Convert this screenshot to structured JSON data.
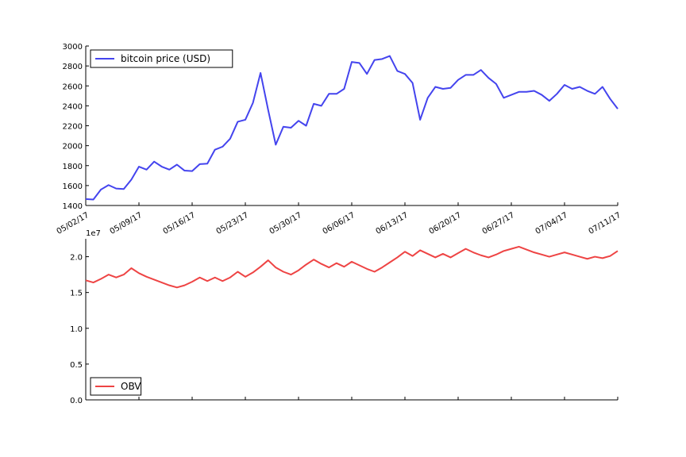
{
  "chart_data": [
    {
      "type": "line",
      "x_tick_labels": [
        "05/02/17",
        "05/09/17",
        "05/16/17",
        "05/23/17",
        "05/30/17",
        "06/06/17",
        "06/13/17",
        "06/20/17",
        "06/27/17",
        "07/04/17",
        "07/11/17"
      ],
      "x": [
        "05/02/17",
        "05/03/17",
        "05/04/17",
        "05/05/17",
        "05/06/17",
        "05/07/17",
        "05/08/17",
        "05/09/17",
        "05/10/17",
        "05/11/17",
        "05/12/17",
        "05/13/17",
        "05/14/17",
        "05/15/17",
        "05/16/17",
        "05/17/17",
        "05/18/17",
        "05/19/17",
        "05/20/17",
        "05/21/17",
        "05/22/17",
        "05/23/17",
        "05/24/17",
        "05/25/17",
        "05/26/17",
        "05/27/17",
        "05/28/17",
        "05/29/17",
        "05/30/17",
        "05/31/17",
        "06/01/17",
        "06/02/17",
        "06/03/17",
        "06/04/17",
        "06/05/17",
        "06/06/17",
        "06/07/17",
        "06/08/17",
        "06/09/17",
        "06/10/17",
        "06/11/17",
        "06/12/17",
        "06/13/17",
        "06/14/17",
        "06/15/17",
        "06/16/17",
        "06/17/17",
        "06/18/17",
        "06/19/17",
        "06/20/17",
        "06/21/17",
        "06/22/17",
        "06/23/17",
        "06/24/17",
        "06/25/17",
        "06/26/17",
        "06/27/17",
        "06/28/17",
        "06/29/17",
        "06/30/17",
        "07/01/17",
        "07/02/17",
        "07/03/17",
        "07/04/17",
        "07/05/17",
        "07/06/17",
        "07/07/17",
        "07/08/17",
        "07/09/17",
        "07/10/17",
        "07/11/17"
      ],
      "series": [
        {
          "name": "bitcoin price (USD)",
          "color": "#4444ee",
          "values": [
            1465,
            1460,
            1560,
            1605,
            1570,
            1565,
            1660,
            1790,
            1760,
            1840,
            1790,
            1760,
            1810,
            1750,
            1745,
            1815,
            1820,
            1960,
            1990,
            2070,
            2240,
            2260,
            2430,
            2730,
            2360,
            2010,
            2190,
            2180,
            2250,
            2200,
            2420,
            2400,
            2520,
            2520,
            2570,
            2840,
            2830,
            2720,
            2860,
            2870,
            2900,
            2750,
            2720,
            2630,
            2260,
            2480,
            2590,
            2570,
            2580,
            2660,
            2710,
            2710,
            2760,
            2680,
            2620,
            2480,
            2510,
            2540,
            2540,
            2550,
            2510,
            2450,
            2520,
            2610,
            2570,
            2590,
            2550,
            2520,
            2590,
            2470,
            2370
          ]
        }
      ],
      "yticks": [
        1400,
        1600,
        1800,
        2000,
        2200,
        2400,
        2600,
        2800,
        3000
      ],
      "ylim": [
        1400,
        3000
      ],
      "legend": "upper left",
      "grid": false
    },
    {
      "type": "line",
      "x": [
        "05/02/17",
        "05/03/17",
        "05/04/17",
        "05/05/17",
        "05/06/17",
        "05/07/17",
        "05/08/17",
        "05/09/17",
        "05/10/17",
        "05/11/17",
        "05/12/17",
        "05/13/17",
        "05/14/17",
        "05/15/17",
        "05/16/17",
        "05/17/17",
        "05/18/17",
        "05/19/17",
        "05/20/17",
        "05/21/17",
        "05/22/17",
        "05/23/17",
        "05/24/17",
        "05/25/17",
        "05/26/17",
        "05/27/17",
        "05/28/17",
        "05/29/17",
        "05/30/17",
        "05/31/17",
        "06/01/17",
        "06/02/17",
        "06/03/17",
        "06/04/17",
        "06/05/17",
        "06/06/17",
        "06/07/17",
        "06/08/17",
        "06/09/17",
        "06/10/17",
        "06/11/17",
        "06/12/17",
        "06/13/17",
        "06/14/17",
        "06/15/17",
        "06/16/17",
        "06/17/17",
        "06/18/17",
        "06/19/17",
        "06/20/17",
        "06/21/17",
        "06/22/17",
        "06/23/17",
        "06/24/17",
        "06/25/17",
        "06/26/17",
        "06/27/17",
        "06/28/17",
        "06/29/17",
        "06/30/17",
        "07/01/17",
        "07/02/17",
        "07/03/17",
        "07/04/17",
        "07/05/17",
        "07/06/17",
        "07/07/17",
        "07/08/17",
        "07/09/17",
        "07/10/17",
        "07/11/17"
      ],
      "series": [
        {
          "name": "OBV",
          "color": "#ee4444",
          "values": [
            16700000,
            16400000,
            16900000,
            17500000,
            17100000,
            17500000,
            18400000,
            17700000,
            17200000,
            16800000,
            16400000,
            16000000,
            15700000,
            16000000,
            16500000,
            17100000,
            16600000,
            17100000,
            16600000,
            17100000,
            17900000,
            17200000,
            17800000,
            18600000,
            19500000,
            18500000,
            17900000,
            17500000,
            18100000,
            18900000,
            19600000,
            19000000,
            18500000,
            19100000,
            18600000,
            19300000,
            18800000,
            18300000,
            17900000,
            18500000,
            19200000,
            19900000,
            20700000,
            20100000,
            20900000,
            20400000,
            19900000,
            20400000,
            19900000,
            20500000,
            21100000,
            20600000,
            20200000,
            19900000,
            20300000,
            20800000,
            21100000,
            21400000,
            21000000,
            20600000,
            20300000,
            20000000,
            20300000,
            20600000,
            20300000,
            20000000,
            19700000,
            20000000,
            19800000,
            20100000,
            20800000
          ]
        }
      ],
      "yticks_labels": [
        "0.0",
        "0.5",
        "1.0",
        "1.5",
        "2.0"
      ],
      "yticks": [
        0,
        5000000,
        10000000,
        15000000,
        20000000
      ],
      "ylim": [
        0,
        22500000
      ],
      "offset_label": "1e7",
      "legend": "lower left",
      "grid": false
    }
  ]
}
